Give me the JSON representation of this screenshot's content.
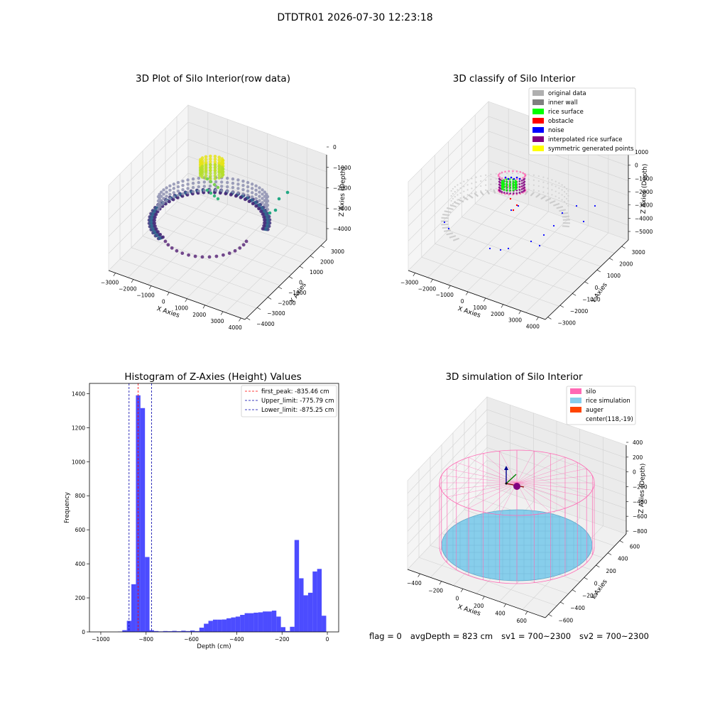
{
  "figure": {
    "suptitle": "DTDTR01 2026-07-30 12:23:18",
    "status": {
      "flag": "flag = 0",
      "avg_depth": "avgDepth = 823 cm",
      "sv1": "sv1 = 700~2300",
      "sv2": "sv2 = 700~2300"
    }
  },
  "chart_data": [
    {
      "panel": "row-data",
      "type": "scatter",
      "title": "3D Plot of Silo Interior(row data)",
      "xlabel": "X Axies",
      "ylabel": "Y Axies",
      "zlabel": "Z Axies (Depth)",
      "x_ticks": [
        -3000,
        -2000,
        -1000,
        0,
        1000,
        2000,
        3000,
        4000
      ],
      "y_ticks": [
        -4000,
        -3000,
        -2000,
        -1000,
        0,
        1000,
        2000,
        3000
      ],
      "z_ticks": [
        0,
        -1000,
        -2000,
        -3000,
        -4000
      ],
      "colormap": "viridis",
      "legend": null,
      "grid": true
    },
    {
      "panel": "classify",
      "type": "scatter",
      "title": "3D classify of Silo Interior",
      "xlabel": "X Axies",
      "ylabel": "Y Axies",
      "zlabel": "Z Axies (Depth)",
      "x_ticks": [
        -3000,
        -2000,
        -1000,
        0,
        1000,
        2000,
        3000,
        4000
      ],
      "y_ticks": [
        -3000,
        -2000,
        -1000,
        0,
        1000,
        2000,
        3000
      ],
      "z_ticks": [
        1000,
        0,
        -1000,
        -2000,
        -3000,
        -4000,
        -5000
      ],
      "legend_position": "top-right",
      "legend": [
        {
          "label": "original data",
          "color": "#b0b0b0"
        },
        {
          "label": "inner wall",
          "color": "#808080"
        },
        {
          "label": "rice surface",
          "color": "#00ff00"
        },
        {
          "label": "obstacle",
          "color": "#ff0000"
        },
        {
          "label": "noise",
          "color": "#0000ff"
        },
        {
          "label": "interpolated rice surface",
          "color": "#800080"
        },
        {
          "label": "symmetric generated points",
          "color": "#ffff00"
        }
      ],
      "grid": true
    },
    {
      "panel": "histogram",
      "type": "bar",
      "title": "Histogram of Z-Axies (Height) Values",
      "xlabel": "Depth (cm)",
      "ylabel": "Frequency",
      "xlim": [
        -1050,
        50
      ],
      "ylim": [
        0,
        1460
      ],
      "x_ticks": [
        -1000,
        -800,
        -600,
        -400,
        -200,
        0
      ],
      "y_ticks": [
        0,
        200,
        400,
        600,
        800,
        1000,
        1200,
        1400
      ],
      "bar_color": "#0000ff",
      "bin_width": 20,
      "bins": [
        [
          -915,
          2
        ],
        [
          -895,
          10
        ],
        [
          -875,
          65
        ],
        [
          -855,
          280
        ],
        [
          -835,
          1390
        ],
        [
          -815,
          1315
        ],
        [
          -795,
          440
        ],
        [
          -775,
          10
        ],
        [
          -755,
          5
        ],
        [
          -735,
          3
        ],
        [
          -715,
          5
        ],
        [
          -695,
          4
        ],
        [
          -675,
          6
        ],
        [
          -655,
          4
        ],
        [
          -635,
          7
        ],
        [
          -615,
          5
        ],
        [
          -595,
          8
        ],
        [
          -575,
          5
        ],
        [
          -555,
          25
        ],
        [
          -535,
          48
        ],
        [
          -515,
          65
        ],
        [
          -495,
          72
        ],
        [
          -475,
          72
        ],
        [
          -455,
          73
        ],
        [
          -435,
          80
        ],
        [
          -415,
          85
        ],
        [
          -395,
          90
        ],
        [
          -375,
          100
        ],
        [
          -355,
          110
        ],
        [
          -335,
          110
        ],
        [
          -315,
          113
        ],
        [
          -295,
          115
        ],
        [
          -275,
          120
        ],
        [
          -255,
          120
        ],
        [
          -235,
          125
        ],
        [
          -215,
          90
        ],
        [
          -195,
          28
        ],
        [
          -175,
          5
        ],
        [
          -155,
          30
        ],
        [
          -135,
          540
        ],
        [
          -115,
          315
        ],
        [
          -95,
          215
        ],
        [
          -75,
          230
        ],
        [
          -55,
          355
        ],
        [
          -35,
          370
        ],
        [
          -15,
          95
        ]
      ],
      "vlines": [
        {
          "label": "first_peak: -835.46 cm",
          "x": -835.46,
          "color": "#ff0000"
        },
        {
          "label": "Upper_limit: -775.79 cm",
          "x": -775.79,
          "color": "#0000aa"
        },
        {
          "label": "Lower_limit: -875.25 cm",
          "x": -875.25,
          "color": "#0000aa"
        }
      ],
      "legend_position": "top-right",
      "grid": false
    },
    {
      "panel": "simulation",
      "type": "scatter",
      "title": "3D simulation of Silo Interior",
      "xlabel": "X Axies",
      "ylabel": "Y Axies",
      "zlabel": "Z Axies (Depth)",
      "x_ticks": [
        -400,
        -200,
        0,
        200,
        400,
        600
      ],
      "y_ticks": [
        -600,
        -400,
        -200,
        0,
        200,
        400,
        600
      ],
      "z_ticks": [
        400,
        200,
        0,
        -200,
        -400,
        -600,
        -800
      ],
      "legend_position": "top-right",
      "legend": [
        {
          "label": "silo",
          "color": "#ff69b4"
        },
        {
          "label": "rice simulation",
          "color": "#87ceeb"
        },
        {
          "label": "auger",
          "color": "#ff4500"
        },
        {
          "label": "center(118,-19)",
          "color": null
        }
      ],
      "grid": true
    }
  ]
}
